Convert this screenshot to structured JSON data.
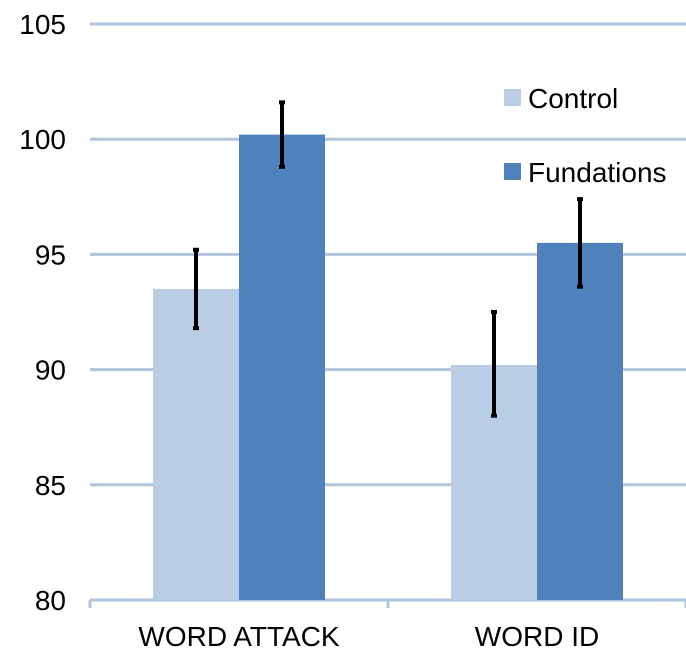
{
  "chart_data": {
    "type": "bar",
    "categories": [
      "WORD ATTACK",
      "WORD ID"
    ],
    "series": [
      {
        "name": "Control",
        "values": [
          93.5,
          90.2
        ],
        "error_low": [
          91.8,
          88.0
        ],
        "error_high": [
          95.2,
          92.5
        ]
      },
      {
        "name": "Fundations",
        "values": [
          100.2,
          95.5
        ],
        "error_low": [
          98.8,
          93.6
        ],
        "error_high": [
          101.6,
          97.4
        ]
      }
    ],
    "title": "",
    "xlabel": "",
    "ylabel": "",
    "ylim": [
      80,
      105
    ],
    "yticks": [
      80,
      85,
      90,
      95,
      100,
      105
    ],
    "ytick_labels": [
      "80",
      "85",
      "90",
      "95",
      "100",
      "105"
    ],
    "grid": true,
    "legend_position": "top-right"
  },
  "colors": {
    "control": "#b9cde5",
    "fundations": "#4f81bd",
    "grid": "#b0c4de",
    "error_bar": "#000000"
  }
}
